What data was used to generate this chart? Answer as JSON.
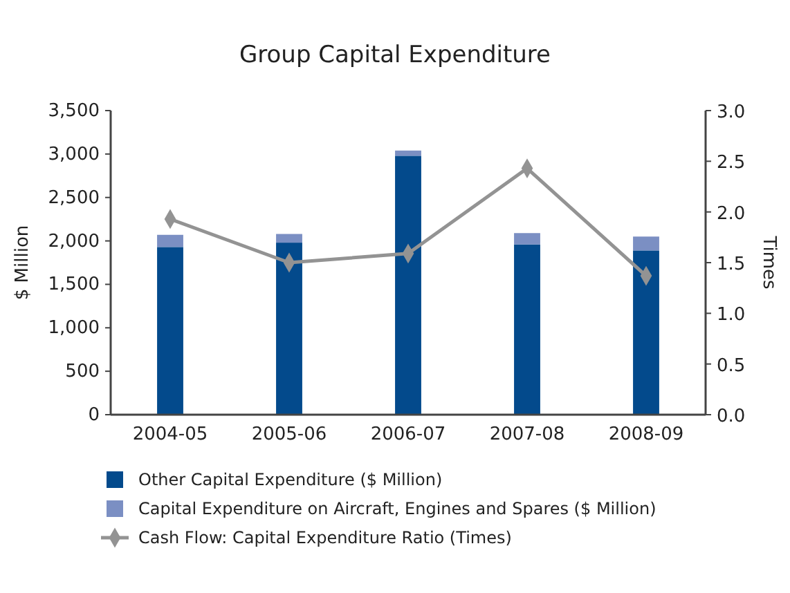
{
  "chart_data": {
    "type": "bar",
    "title": "Group Capital Expenditure",
    "ylabel": "$ Million",
    "y2label": "Times",
    "categories": [
      "2004-05",
      "2005-06",
      "2006-07",
      "2007-08",
      "2008-09"
    ],
    "stacked": true,
    "series": [
      {
        "name": "Other Capital Expenditure ($ Million)",
        "color": "#034a8c",
        "values": [
          1930,
          1980,
          2980,
          1960,
          1890
        ]
      },
      {
        "name": "Capital Expenditure on Aircraft, Engines and Spares ($ Million)",
        "color": "#7b8fc3",
        "values": [
          140,
          100,
          60,
          130,
          160
        ]
      },
      {
        "name": "Cash Flow: Capital Expenditure Ratio (Times)",
        "type": "line",
        "axis": "y2",
        "color": "#939393",
        "marker": "diamond",
        "values": [
          1.93,
          1.5,
          1.59,
          2.43,
          1.37
        ]
      }
    ],
    "ylim": [
      0,
      3500
    ],
    "yticks": [
      0,
      {
        "value": 500,
        "label": "500"
      },
      {
        "value": 1000,
        "label": "1,000"
      },
      {
        "value": 1500,
        "label": "1,500"
      },
      {
        "value": 2000,
        "label": "2,000"
      },
      {
        "value": 2500,
        "label": "2,500"
      },
      {
        "value": 3000,
        "label": "3,000"
      },
      {
        "value": 3500,
        "label": "3,500"
      }
    ],
    "y2lim": [
      0,
      3
    ],
    "y2ticks": [
      {
        "value": 0,
        "label": "0.0"
      },
      0.5,
      {
        "value": 1,
        "label": "1.0"
      },
      1.5,
      {
        "value": 2,
        "label": "2.0"
      },
      2.5,
      {
        "value": 3,
        "label": "3.0"
      }
    ],
    "legend": "bottom",
    "grid": false
  }
}
